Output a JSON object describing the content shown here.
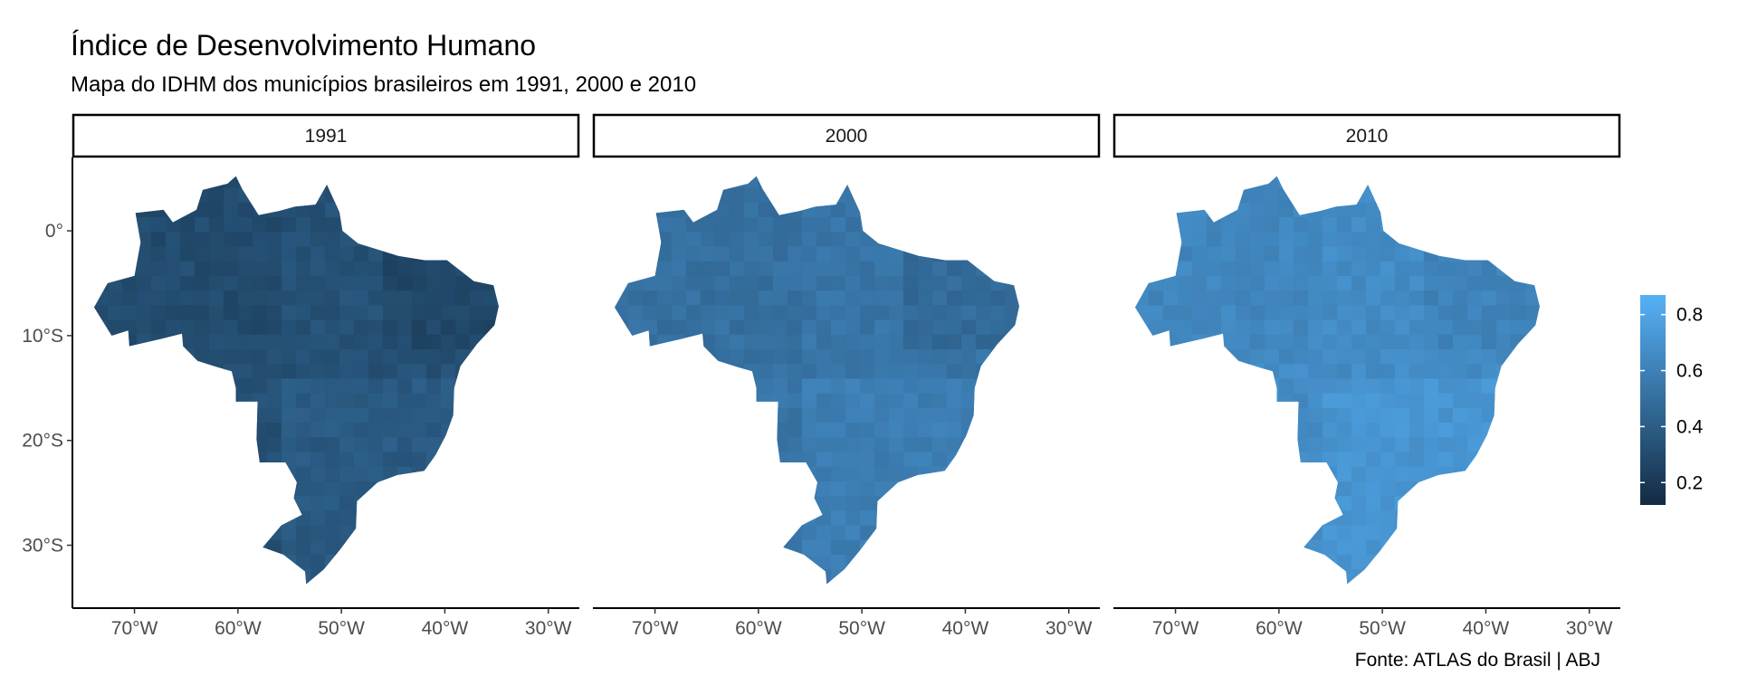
{
  "chart_data": {
    "type": "choropleth-map",
    "title": "Índice de Desenvolvimento Humano",
    "subtitle": "Mapa do IDHM dos municípios brasileiros em 1991, 2000 e 2010",
    "caption": "Fonte: ATLAS do Brasil | ABJ",
    "facets": [
      "1991",
      "2000",
      "2010"
    ],
    "x_ticks": [
      {
        "value": -70,
        "label": "70°W"
      },
      {
        "value": -60,
        "label": "60°W"
      },
      {
        "value": -50,
        "label": "50°W"
      },
      {
        "value": -40,
        "label": "40°W"
      },
      {
        "value": -30,
        "label": "30°W"
      }
    ],
    "y_ticks": [
      {
        "value": 0,
        "label": "0°"
      },
      {
        "value": -10,
        "label": "10°S"
      },
      {
        "value": -20,
        "label": "20°S"
      },
      {
        "value": -30,
        "label": "30°S"
      }
    ],
    "xlim": [
      -76,
      -27
    ],
    "ylim": [
      -36,
      7
    ],
    "legend": {
      "position": "right",
      "range": [
        0.12,
        0.87
      ],
      "breaks": [
        {
          "value": 0.8,
          "label": "0.8"
        },
        {
          "value": 0.6,
          "label": "0.6"
        },
        {
          "value": 0.4,
          "label": "0.4"
        },
        {
          "value": 0.2,
          "label": "0.2"
        }
      ],
      "color_low": "#132b43",
      "color_high": "#56b1f7"
    },
    "facet_typical_values": [
      0.33,
      0.53,
      0.66
    ],
    "grid": false
  }
}
